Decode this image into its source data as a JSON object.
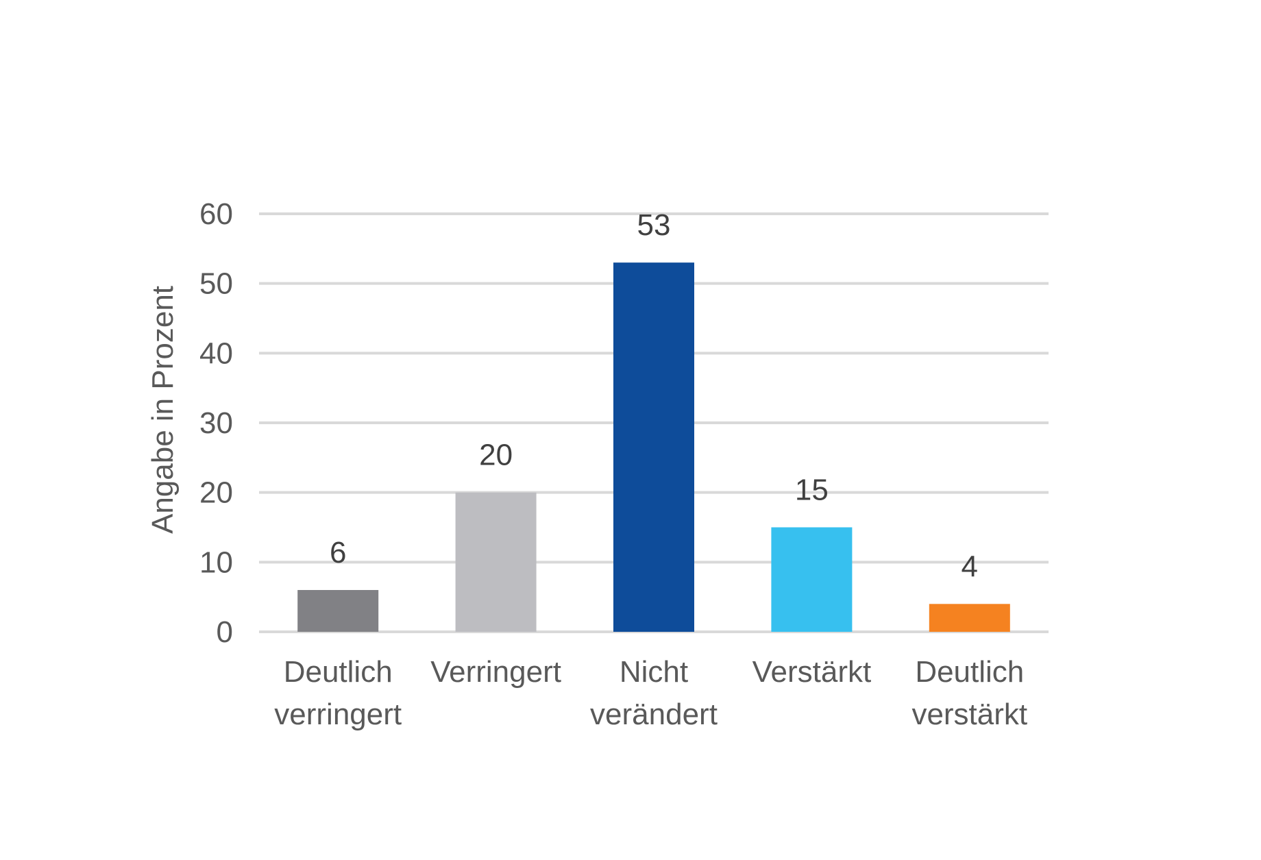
{
  "chart_data": {
    "type": "bar",
    "title": "",
    "xlabel": "",
    "ylabel": "Angabe in Prozent",
    "ylim": [
      0,
      60
    ],
    "yticks": [
      0,
      10,
      20,
      30,
      40,
      50,
      60
    ],
    "grid": true,
    "legend": "none",
    "categories": [
      [
        "Deutlich",
        "verringert"
      ],
      [
        "Verringert"
      ],
      [
        "Nicht",
        "verändert"
      ],
      [
        "Verstärkt"
      ],
      [
        "Deutlich",
        "verstärkt"
      ]
    ],
    "values": [
      6,
      20,
      53,
      15,
      4
    ],
    "data_labels": [
      "6",
      "20",
      "53",
      "15",
      "4"
    ],
    "colors": [
      "#818185",
      "#bdbdc1",
      "#0e4c9a",
      "#37c0ef",
      "#f58220"
    ],
    "gridline_color": "#d9d9d9",
    "text_color": "#595959"
  }
}
